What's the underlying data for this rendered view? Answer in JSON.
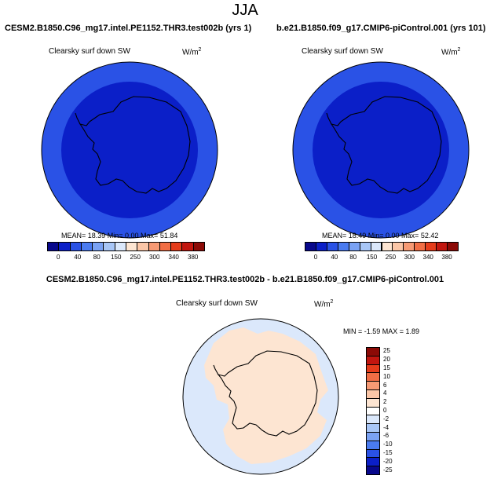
{
  "main_title": "JJA",
  "panels": [
    {
      "title": "CESM2.B1850.C96_mg17.intel.PE1152.THR3.test002b (yrs 1)",
      "variable": "Clearsky surf down SW",
      "units_base": "W/m",
      "units_exp": "2",
      "stats": "MEAN=  18.39  Min=   0.00  Max=  51.84"
    },
    {
      "title": "b.e21.B1850.f09_g17.CMIP6-piControl.001 (yrs 101)",
      "variable": "Clearsky surf down SW",
      "units_base": "W/m",
      "units_exp": "2",
      "stats": "MEAN=  18.49  Min=   0.00  Max=  52.42"
    }
  ],
  "colorbar": {
    "colors": [
      "#08088c",
      "#0b1fc8",
      "#2a52e6",
      "#4a7bf0",
      "#7aa2f4",
      "#a8c6f6",
      "#dbe8fb",
      "#fde5d2",
      "#fbc6a7",
      "#f79a74",
      "#f16e45",
      "#e53c1b",
      "#c2160f",
      "#8c0a06"
    ],
    "labels": [
      "0",
      "40",
      "80",
      "150",
      "250",
      "300",
      "340",
      "380"
    ]
  },
  "diff": {
    "title": "CESM2.B1850.C96_mg17.intel.PE1152.THR3.test002b - b.e21.B1850.f09_g17.CMIP6-piControl.001",
    "variable": "Clearsky surf down SW",
    "units_base": "W/m",
    "units_exp": "2",
    "stats": "MIN =  -1.59  MAX =   1.89",
    "colorbar_colors": [
      "#8c0a06",
      "#c2160f",
      "#e53c1b",
      "#f16e45",
      "#f79a74",
      "#fbc6a7",
      "#fde5d2",
      "#ffffff",
      "#dbe8fb",
      "#a8c6f6",
      "#7aa2f4",
      "#4a7bf0",
      "#2a52e6",
      "#0b1fc8",
      "#08088c"
    ],
    "colorbar_labels": [
      "25",
      "20",
      "15",
      "10",
      "6",
      "4",
      "2",
      "0",
      "-2",
      "-4",
      "-6",
      "-10",
      "-15",
      "-20",
      "-25"
    ]
  },
  "chart_data": [
    {
      "type": "heatmap",
      "projection": "south-polar stereographic",
      "title": "CESM2.B1850.C96_mg17.intel.PE1152.THR3.test002b (yrs 1)",
      "variable": "Clearsky surf down SW",
      "units": "W/m2",
      "mean": 18.39,
      "min": 0.0,
      "max": 51.84,
      "levels": [
        0,
        40,
        80,
        150,
        250,
        300,
        340,
        380
      ],
      "field": [
        {
          "region": "outer ring (lower latitudes)",
          "band": "40-80"
        },
        {
          "region": "interior / Antarctica",
          "band": "0-40"
        }
      ]
    },
    {
      "type": "heatmap",
      "projection": "south-polar stereographic",
      "title": "b.e21.B1850.f09_g17.CMIP6-piControl.001 (yrs 101)",
      "variable": "Clearsky surf down SW",
      "units": "W/m2",
      "mean": 18.49,
      "min": 0.0,
      "max": 52.42,
      "levels": [
        0,
        40,
        80,
        150,
        250,
        300,
        340,
        380
      ],
      "field": [
        {
          "region": "outer ring (lower latitudes)",
          "band": "40-80"
        },
        {
          "region": "interior / Antarctica",
          "band": "0-40"
        }
      ]
    },
    {
      "type": "heatmap",
      "projection": "south-polar stereographic",
      "title": "CESM2.B1850.C96_mg17.intel.PE1152.THR3.test002b - b.e21.B1850.f09_g17.CMIP6-piControl.001",
      "variable": "Clearsky surf down SW",
      "units": "W/m2",
      "min": -1.59,
      "max": 1.89,
      "levels": [
        -25,
        -20,
        -15,
        -10,
        -6,
        -4,
        -2,
        0,
        2,
        4,
        6,
        10,
        15,
        20,
        25
      ],
      "field": [
        {
          "region": "Antarctica and inner ocean",
          "band": "0-2"
        },
        {
          "region": "outer ocean",
          "band": "-2-0"
        }
      ]
    }
  ]
}
